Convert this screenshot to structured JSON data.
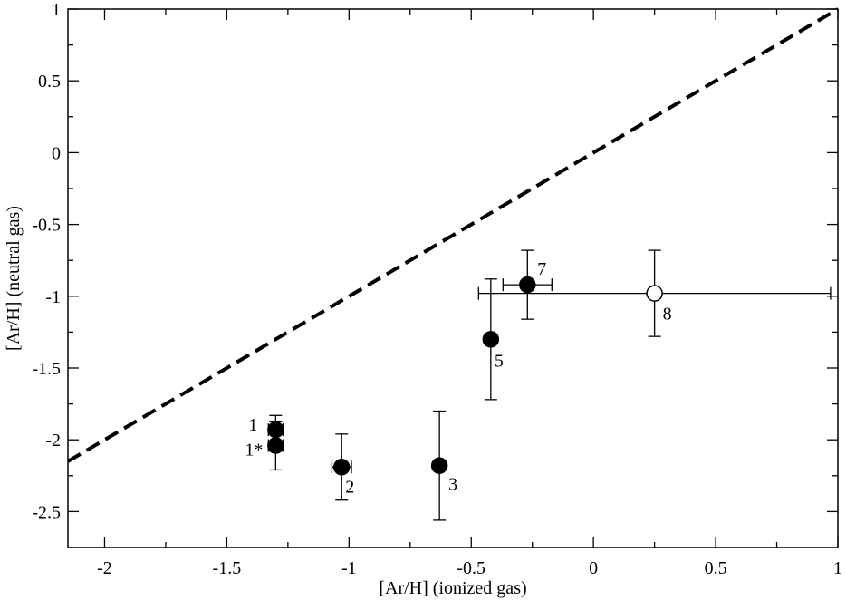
{
  "chart_data": {
    "type": "scatter",
    "xlabel": "[Ar/H] (ionized gas)",
    "ylabel": "[Ar/H] (neutral gas)",
    "xlim": [
      -2.15,
      1.0
    ],
    "ylim": [
      -2.75,
      1.0
    ],
    "x_ticks": [
      -2,
      -1.5,
      -1,
      -0.5,
      0,
      0.5,
      1
    ],
    "x_tick_labels": [
      "-2",
      "-1.5",
      "-1",
      "-0.5",
      "0",
      "0.5",
      "1"
    ],
    "y_ticks": [
      -2.5,
      -2,
      -1.5,
      -1,
      -0.5,
      0,
      0.5,
      1
    ],
    "y_tick_labels": [
      "-2.5",
      "-2",
      "-1.5",
      "-1",
      "-0.5",
      "0",
      "0.5",
      "1"
    ],
    "grid": false,
    "reference_line": {
      "style": "dashed",
      "x": [
        -2.15,
        1.0
      ],
      "y": [
        -2.15,
        1.0
      ]
    },
    "points": [
      {
        "label": "1",
        "x": -1.3,
        "y": -1.93,
        "xerr": [
          0.03,
          0.03
        ],
        "yerr": [
          0.1,
          0.1
        ],
        "filled": true
      },
      {
        "label": "1*",
        "x": -1.3,
        "y": -2.04,
        "xerr": [
          0.03,
          0.03
        ],
        "yerr": [
          0.17,
          0.17
        ],
        "filled": true
      },
      {
        "label": "2",
        "x": -1.03,
        "y": -2.19,
        "xerr": [
          0.04,
          0.04
        ],
        "yerr": [
          0.23,
          0.23
        ],
        "filled": true
      },
      {
        "label": "3",
        "x": -0.63,
        "y": -2.18,
        "xerr": [
          0.0,
          0.0
        ],
        "yerr": [
          0.38,
          0.38
        ],
        "filled": true
      },
      {
        "label": "5",
        "x": -0.42,
        "y": -1.3,
        "xerr": [
          0.02,
          0.02
        ],
        "yerr": [
          0.42,
          0.42
        ],
        "filled": true
      },
      {
        "label": "7",
        "x": -0.27,
        "y": -0.92,
        "xerr": [
          0.1,
          0.1
        ],
        "yerr": [
          0.24,
          0.24
        ],
        "filled": true
      },
      {
        "label": "8",
        "x": 0.25,
        "y": -0.98,
        "xerr": [
          0.72,
          0.72
        ],
        "yerr": [
          0.3,
          0.3
        ],
        "filled": false
      }
    ]
  }
}
